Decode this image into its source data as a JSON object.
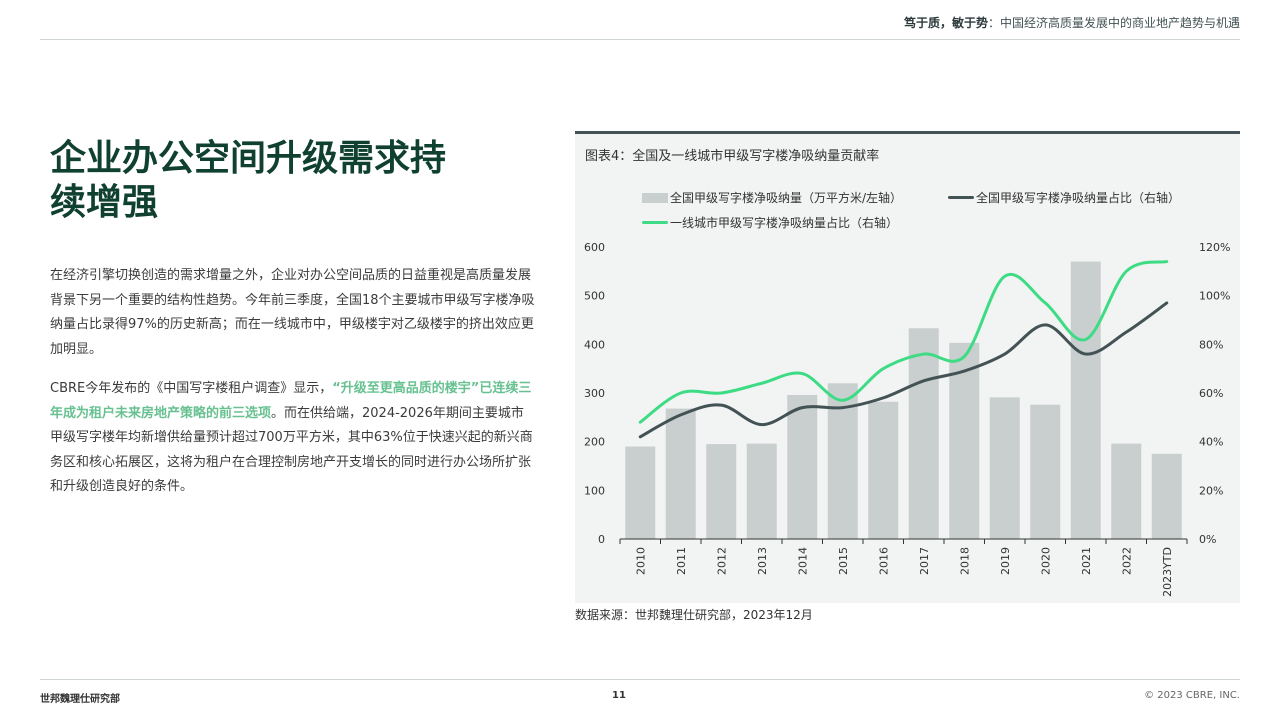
{
  "header": {
    "bold": "笃于质，敏于势",
    "rest": "：中国经济高质量发展中的商业地产趋势与机遇"
  },
  "page_title": "企业办公空间升级需求持续增强",
  "paragraph1": "在经济引擎切换创造的需求增量之外，企业对办公空间品质的日益重视是高质量发展背景下另一个重要的结构性趋势。今年前三季度，全国18个主要城市甲级写字楼净吸纳量占比录得97%的历史新高；而在一线城市中，甲级楼宇对乙级楼宇的挤出效应更加明显。",
  "paragraph2": {
    "before": "CBRE今年发布的《中国写字楼租户调查》显示，",
    "highlight": "“升级至更高品质的楼宇”已连续三年成为租户未来房地产策略的前三选项",
    "after": "。而在供给端，2024-2026年期间主要城市甲级写字楼年均新增供给量预计超过700万平方米，其中63%位于快速兴起的新兴商务区和核心拓展区，这将为租户在合理控制房地产开支增长的同时进行办公场所扩张和升级创造良好的条件。"
  },
  "source": "数据来源：世邦魏理仕研究部，2023年12月",
  "footer": {
    "left": "世邦魏理仕研究部",
    "page": "11",
    "right": "© 2023 CBRE, INC."
  },
  "colors": {
    "bar": "#c9cfcf",
    "national_line": "#435254",
    "tier1_line": "#3ddc84",
    "title": "#0f4030",
    "highlight": "#67c191"
  },
  "chart_data": {
    "type": "bar",
    "title": "图表4：全国及一线城市甲级写字楼净吸纳量贡献率",
    "categories": [
      "2010",
      "2011",
      "2012",
      "2013",
      "2014",
      "2015",
      "2016",
      "2017",
      "2018",
      "2019",
      "2020",
      "2021",
      "2022",
      "2023YTD"
    ],
    "series": [
      {
        "name": "全国甲级写字楼净吸纳量（万平方米/左轴）",
        "type": "bar",
        "axis": "left",
        "values": [
          190,
          268,
          195,
          196,
          296,
          320,
          282,
          433,
          403,
          291,
          276,
          570,
          196,
          175
        ]
      },
      {
        "name": "全国甲级写字楼净吸纳量占比（右轴）",
        "type": "line",
        "axis": "right",
        "values": [
          42,
          51,
          55,
          47,
          54,
          54,
          58,
          65,
          69,
          76,
          88,
          76,
          85,
          97
        ]
      },
      {
        "name": "一线城市甲级写字楼净吸纳量占比（右轴）",
        "type": "line",
        "axis": "right",
        "values": [
          48,
          60,
          60,
          64,
          68,
          57,
          70,
          76,
          75,
          108,
          97,
          82,
          110,
          114
        ]
      }
    ],
    "y_left": {
      "ylim": [
        0,
        600
      ],
      "ticks": [
        "0",
        "100",
        "200",
        "300",
        "400",
        "500",
        "600"
      ]
    },
    "y_right": {
      "ylim": [
        0,
        120
      ],
      "ticks": [
        "0%",
        "20%",
        "40%",
        "60%",
        "80%",
        "100%",
        "120%"
      ]
    },
    "legend_position": "top",
    "grid": false
  }
}
